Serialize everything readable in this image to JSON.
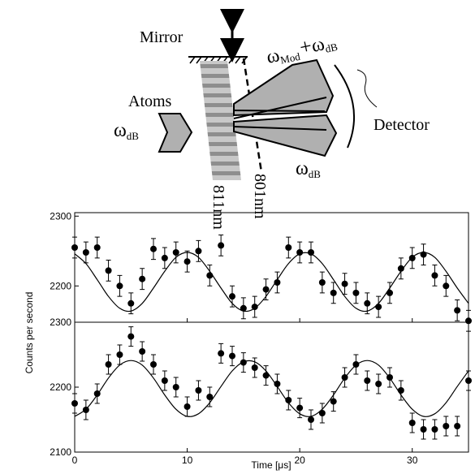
{
  "diagram": {
    "mirror": "Mirror",
    "atoms": "Atoms",
    "detector": "Detector",
    "input_frequency": {
      "symbol": "ω",
      "sub": "dB"
    },
    "output_frequency": {
      "symbol": "ω",
      "sub": "dB"
    },
    "shifted_frequency": {
      "symbol": "ω",
      "sub": "Mod",
      "plus": "+",
      "symbol2": "ω",
      "sub2": "dB"
    },
    "wavelength_1": "811nm",
    "wavelength_2": "801nm"
  },
  "y_label": "Counts per second",
  "x_label": "Time [μs]",
  "chart_data": [
    {
      "type": "scatter",
      "x": [
        0,
        1,
        2,
        3,
        4,
        5,
        6,
        7,
        8,
        9,
        10,
        11,
        12,
        13,
        14,
        15,
        16,
        17,
        18,
        19,
        20,
        21,
        22,
        23,
        24,
        25,
        26,
        27,
        28,
        29,
        30,
        31,
        32,
        33,
        34,
        35
      ],
      "values": [
        2255,
        2248,
        2255,
        2222,
        2200,
        2175,
        2210,
        2253,
        2240,
        2248,
        2235,
        2250,
        2215,
        2258,
        2185,
        2168,
        2170,
        2195,
        2205,
        2255,
        2248,
        2248,
        2205,
        2190,
        2203,
        2190,
        2175,
        2170,
        2190,
        2225,
        2240,
        2245,
        2215,
        2200,
        2165,
        2150
      ],
      "errors": [
        15,
        15,
        15,
        15,
        15,
        15,
        15,
        15,
        15,
        15,
        15,
        15,
        15,
        15,
        15,
        15,
        15,
        15,
        15,
        15,
        15,
        15,
        15,
        15,
        15,
        15,
        15,
        15,
        15,
        15,
        15,
        15,
        15,
        15,
        15,
        15
      ],
      "fit": [
        2246,
        2232,
        2209,
        2185,
        2168,
        2164,
        2175,
        2197,
        2221,
        2241,
        2248,
        2241,
        2221,
        2197,
        2175,
        2164,
        2168,
        2185,
        2209,
        2232,
        2246,
        2246,
        2232,
        2209,
        2185,
        2168,
        2164,
        2175,
        2197,
        2221,
        2241,
        2248,
        2241,
        2221,
        2197,
        2175
      ],
      "color": "#000000",
      "xlim": [
        0,
        35
      ],
      "ylim": [
        2148,
        2305
      ],
      "xticks": [
        0,
        10,
        20,
        30
      ],
      "yticks": [
        2200,
        2300
      ]
    },
    {
      "type": "scatter",
      "x": [
        0,
        1,
        2,
        3,
        4,
        5,
        6,
        7,
        8,
        9,
        10,
        11,
        12,
        13,
        14,
        15,
        16,
        17,
        18,
        19,
        20,
        21,
        22,
        23,
        24,
        25,
        26,
        27,
        28,
        29,
        30,
        31,
        32,
        33,
        34,
        35
      ],
      "values": [
        2175,
        2165,
        2190,
        2235,
        2250,
        2278,
        2255,
        2235,
        2210,
        2200,
        2170,
        2195,
        2185,
        2252,
        2248,
        2238,
        2230,
        2218,
        2205,
        2180,
        2168,
        2150,
        2160,
        2178,
        2215,
        2235,
        2210,
        2205,
        2215,
        2195,
        2145,
        2135,
        2135,
        2140,
        2140,
        2210
      ],
      "errors": [
        15,
        15,
        15,
        15,
        15,
        15,
        15,
        15,
        15,
        15,
        15,
        15,
        15,
        15,
        15,
        15,
        15,
        15,
        15,
        15,
        15,
        15,
        15,
        15,
        15,
        15,
        15,
        15,
        15,
        15,
        15,
        15,
        15,
        15,
        15,
        15
      ],
      "fit": [
        2155,
        2166,
        2188,
        2214,
        2234,
        2241,
        2234,
        2214,
        2188,
        2166,
        2155,
        2159,
        2176,
        2201,
        2225,
        2239,
        2239,
        2225,
        2201,
        2176,
        2159,
        2155,
        2166,
        2188,
        2214,
        2234,
        2241,
        2234,
        2214,
        2188,
        2166,
        2155,
        2159,
        2176,
        2201,
        2225
      ],
      "color": "#000000",
      "xlim": [
        0,
        35
      ],
      "ylim": [
        2100,
        2300
      ],
      "xticks": [
        0,
        10,
        20,
        30
      ],
      "yticks": [
        2100,
        2200,
        2300
      ]
    }
  ]
}
